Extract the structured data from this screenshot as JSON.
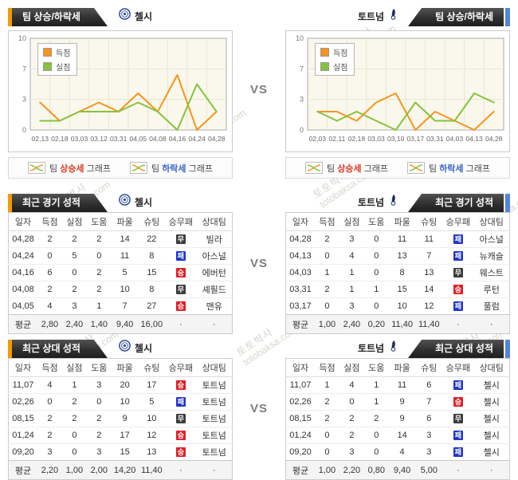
{
  "vs_label": "VS",
  "watermark": {
    "line1": "토토박사",
    "line2": "totobaksa.com"
  },
  "teams": {
    "left": "첼시",
    "right": "토트넘"
  },
  "section_titles": {
    "trend": "팀 상승/하락세",
    "recent": "최근 경기 성적",
    "h2h": "최근 상대 성적"
  },
  "graph_strip": {
    "up_pre": "팀",
    "up_word": "상승세",
    "up_post": "그래프",
    "down_pre": "팀",
    "down_word": "하락세",
    "down_post": "그래프"
  },
  "chart_data": [
    {
      "type": "line",
      "team": "첼시",
      "x": [
        "02,13",
        "02,18",
        "03,03",
        "03,12",
        "03,31",
        "04,05",
        "04,08",
        "04,16",
        "04,24",
        "04,28"
      ],
      "series": [
        {
          "name": "득점",
          "color": "#f7941d",
          "values": [
            3,
            1,
            2,
            3,
            2,
            4,
            2,
            6,
            0,
            2
          ]
        },
        {
          "name": "실점",
          "color": "#85c33d",
          "values": [
            1,
            1,
            2,
            2,
            2,
            3,
            2,
            0,
            5,
            2
          ]
        }
      ],
      "ylim": [
        0,
        10
      ],
      "ytick_labels": [
        "0",
        "3",
        "7",
        "10"
      ],
      "grid": true,
      "legend_position": "top-left",
      "plot_bg": "#faf8ec"
    },
    {
      "type": "line",
      "team": "토트넘",
      "x": [
        "02,03",
        "02,11",
        "02,18",
        "03,03",
        "03,10",
        "03,17",
        "03,31",
        "04,03",
        "04,13",
        "04,28"
      ],
      "series": [
        {
          "name": "득점",
          "color": "#f7941d",
          "values": [
            2,
            2,
            1,
            3,
            4,
            0,
            2,
            1,
            0,
            2
          ]
        },
        {
          "name": "실점",
          "color": "#85c33d",
          "values": [
            2,
            1,
            2,
            1,
            0,
            3,
            1,
            1,
            4,
            3
          ]
        }
      ],
      "ylim": [
        0,
        10
      ],
      "ytick_labels": [
        "0",
        "3",
        "7",
        "10"
      ],
      "grid": true,
      "legend_position": "top-left",
      "plot_bg": "#faf8ec"
    }
  ],
  "table_headers": [
    "일자",
    "득점",
    "실점",
    "도움",
    "파울",
    "슈팅",
    "승무패",
    "상대팀"
  ],
  "badges": {
    "win": {
      "label": "승",
      "color": "#e01e25"
    },
    "draw": {
      "label": "무",
      "color": "#3c3c3c"
    },
    "loss": {
      "label": "패",
      "color": "#2135c9"
    }
  },
  "tables": {
    "recent_left": {
      "rows": [
        [
          "04,28",
          "2",
          "2",
          "2",
          "14",
          "22",
          "draw",
          "빌라"
        ],
        [
          "04,24",
          "0",
          "5",
          "0",
          "11",
          "8",
          "loss",
          "아스널"
        ],
        [
          "04,16",
          "6",
          "0",
          "2",
          "5",
          "15",
          "win",
          "에버턴"
        ],
        [
          "04,08",
          "2",
          "2",
          "2",
          "10",
          "8",
          "draw",
          "셰필드"
        ],
        [
          "04,05",
          "4",
          "3",
          "1",
          "7",
          "27",
          "win",
          "맨유"
        ]
      ],
      "avg": [
        "평균",
        "2,80",
        "2,40",
        "1,40",
        "9,40",
        "16,00",
        "·",
        "·"
      ]
    },
    "recent_right": {
      "rows": [
        [
          "04,28",
          "2",
          "3",
          "0",
          "11",
          "11",
          "loss",
          "아스널"
        ],
        [
          "04,13",
          "0",
          "4",
          "0",
          "13",
          "7",
          "loss",
          "뉴캐슬"
        ],
        [
          "04,03",
          "1",
          "1",
          "0",
          "8",
          "13",
          "draw",
          "웨스트"
        ],
        [
          "03,31",
          "2",
          "1",
          "1",
          "15",
          "14",
          "win",
          "루턴"
        ],
        [
          "03,17",
          "0",
          "3",
          "0",
          "10",
          "12",
          "loss",
          "풀럼"
        ]
      ],
      "avg": [
        "평균",
        "1,00",
        "2,40",
        "0,20",
        "11,40",
        "11,40",
        "·",
        "·"
      ]
    },
    "h2h_left": {
      "rows": [
        [
          "11,07",
          "4",
          "1",
          "3",
          "20",
          "17",
          "win",
          "토트넘"
        ],
        [
          "02,26",
          "0",
          "2",
          "0",
          "10",
          "5",
          "loss",
          "토트넘"
        ],
        [
          "08,15",
          "2",
          "2",
          "2",
          "9",
          "10",
          "draw",
          "토트넘"
        ],
        [
          "01,24",
          "2",
          "0",
          "2",
          "17",
          "12",
          "win",
          "토트넘"
        ],
        [
          "09,20",
          "3",
          "0",
          "3",
          "15",
          "13",
          "win",
          "토트넘"
        ]
      ],
      "avg": [
        "평균",
        "2,20",
        "1,00",
        "2,00",
        "14,20",
        "11,40",
        "·",
        "·"
      ]
    },
    "h2h_right": {
      "rows": [
        [
          "11,07",
          "1",
          "4",
          "1",
          "11",
          "6",
          "loss",
          "첼시"
        ],
        [
          "02,26",
          "2",
          "0",
          "1",
          "9",
          "7",
          "win",
          "첼시"
        ],
        [
          "08,15",
          "2",
          "2",
          "2",
          "9",
          "6",
          "draw",
          "첼시"
        ],
        [
          "01,24",
          "0",
          "2",
          "0",
          "14",
          "3",
          "loss",
          "첼시"
        ],
        [
          "09,20",
          "0",
          "3",
          "0",
          "4",
          "3",
          "loss",
          "첼시"
        ]
      ],
      "avg": [
        "평균",
        "1,00",
        "2,20",
        "0,80",
        "9,40",
        "5,00",
        "·",
        "·"
      ]
    }
  }
}
